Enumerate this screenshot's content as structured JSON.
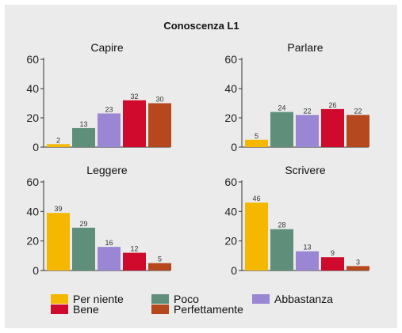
{
  "chart_data": {
    "type": "bar",
    "title": "Conoscenza L1",
    "categories": [
      "Per niente",
      "Poco",
      "Abbastanza",
      "Bene",
      "Perfettamente"
    ],
    "colors": [
      "#f5b700",
      "#5f8f7a",
      "#9b86d3",
      "#cf0a2c",
      "#b5481d"
    ],
    "ylim": [
      0,
      60
    ],
    "yticks": [
      0,
      20,
      40,
      60
    ],
    "grid": false,
    "legend_position": "bottom",
    "panels": [
      {
        "title": "Capire",
        "values": [
          2,
          13,
          23,
          32,
          30
        ]
      },
      {
        "title": "Parlare",
        "values": [
          5,
          24,
          22,
          26,
          22
        ]
      },
      {
        "title": "Leggere",
        "values": [
          39,
          29,
          16,
          12,
          5
        ]
      },
      {
        "title": "Scrivere",
        "values": [
          46,
          28,
          13,
          9,
          3
        ]
      }
    ]
  }
}
